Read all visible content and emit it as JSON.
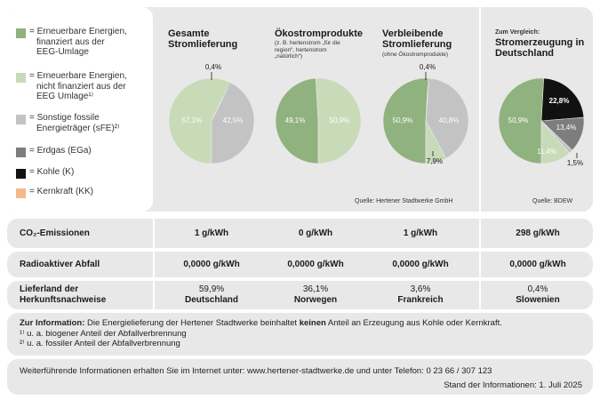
{
  "legend": [
    {
      "color": "#8fb27e",
      "text": "= Erneuerbare Energien, finanziert aus der EEG-Umlage",
      "lines": [
        "= Erneuerbare Energien,",
        "finanziert aus der",
        "EEG-Umlage"
      ]
    },
    {
      "color": "#c8dbb8",
      "text": "= Erneuerbare Energien, nicht finanziert aus der EEG Umlage 1)",
      "lines": [
        "= Erneuerbare Energien,",
        "nicht finanziert aus der",
        "EEG Umlage¹⁾"
      ]
    },
    {
      "color": "#c3c3c3",
      "text": "= Sonstige fossile Energieträger (sFE) 2)",
      "lines": [
        "= Sonstige fossile",
        "Energieträger (sFE)²⁾"
      ]
    },
    {
      "color": "#7d7d7d",
      "text": "= Erdgas (EGa)",
      "lines": [
        "= Erdgas (EGa)"
      ]
    },
    {
      "color": "#111111",
      "text": "= Kohle (K)",
      "lines": [
        "= Kohle (K)"
      ]
    },
    {
      "color": "#f4b88e",
      "text": "= Kernkraft (KK)",
      "lines": [
        "= Kernkraft (KK)"
      ]
    }
  ],
  "charts": {
    "gesamt": {
      "title_lines": [
        "Gesamte",
        "Stromlieferung"
      ]
    },
    "oeko": {
      "title_lines": [
        "Ökostromprodukte"
      ],
      "sub_lines": [
        "(z. B. hertenstrom „für die",
        "region“, hertenstrom",
        "„natürlich“)"
      ]
    },
    "verbleibend": {
      "title_lines": [
        "Verbleibende",
        "Stromlieferung"
      ],
      "sub_lines": [
        "(ohne Ökostromprodukte)"
      ]
    },
    "deutschland": {
      "pre_title": "Zum Vergleich:",
      "title_lines": [
        "Stromerzeugung in",
        "Deutschland"
      ]
    }
  },
  "chart_data": [
    {
      "type": "pie",
      "title": "Gesamte Stromlieferung",
      "slices": [
        {
          "label": "57,1%",
          "value": 57.1,
          "category": "Erneuerbare Energien, nicht finanziert aus der EEG Umlage",
          "color": "#c8dbb8"
        },
        {
          "label": "42,5%",
          "value": 42.5,
          "category": "Sonstige fossile Energieträger (sFE)",
          "color": "#c3c3c3"
        },
        {
          "label": "0,4%",
          "value": 0.4,
          "category": "Erdgas (EGa)",
          "color": "#7d7d7d"
        }
      ]
    },
    {
      "type": "pie",
      "title": "Ökostromprodukte",
      "slices": [
        {
          "label": "49,1%",
          "value": 49.1,
          "category": "Erneuerbare Energien, finanziert aus der EEG-Umlage",
          "color": "#8fb27e"
        },
        {
          "label": "50,9%",
          "value": 50.9,
          "category": "Erneuerbare Energien, nicht finanziert aus der EEG Umlage",
          "color": "#c8dbb8"
        }
      ]
    },
    {
      "type": "pie",
      "title": "Verbleibende Stromlieferung",
      "slices": [
        {
          "label": "50,9%",
          "value": 50.9,
          "category": "Erneuerbare Energien, finanziert aus der EEG-Umlage",
          "color": "#8fb27e"
        },
        {
          "label": "7,9%",
          "value": 7.9,
          "category": "Erneuerbare Energien, nicht finanziert aus der EEG Umlage",
          "color": "#c8dbb8"
        },
        {
          "label": "40,8%",
          "value": 40.8,
          "category": "Sonstige fossile Energieträger (sFE)",
          "color": "#c3c3c3"
        },
        {
          "label": "0,4%",
          "value": 0.4,
          "category": "Erdgas (EGa)",
          "color": "#7d7d7d"
        }
      ]
    },
    {
      "type": "pie",
      "title": "Stromerzeugung in Deutschland",
      "slices": [
        {
          "label": "50,9%",
          "value": 50.9,
          "category": "Erneuerbare Energien, finanziert aus der EEG-Umlage",
          "color": "#8fb27e"
        },
        {
          "label": "11,4%",
          "value": 11.4,
          "category": "Erneuerbare Energien, nicht finanziert aus der EEG Umlage",
          "color": "#c8dbb8"
        },
        {
          "label": "1,5%",
          "value": 1.5,
          "category": "Sonstige fossile Energieträger (sFE)",
          "color": "#c3c3c3"
        },
        {
          "label": "13,4%",
          "value": 13.4,
          "category": "Erdgas (EGa)",
          "color": "#7d7d7d"
        },
        {
          "label": "22,8%",
          "value": 22.8,
          "category": "Kohle (K)",
          "color": "#111111"
        }
      ]
    }
  ],
  "sources": {
    "stadtwerke": "Quelle: Hertener Stadtwerke GmbH",
    "bdew": "Quelle: BDEW"
  },
  "table": {
    "rows": [
      {
        "label_lines": [
          "CO₂-Emissionen"
        ],
        "cells": [
          [
            "1 g/kWh"
          ],
          [
            "0 g/kWh"
          ],
          [
            "1 g/kWh"
          ],
          [
            "298 g/kWh"
          ]
        ]
      },
      {
        "label_lines": [
          "Radioaktiver Abfall"
        ],
        "cells": [
          [
            "0,0000 g/kWh"
          ],
          [
            "0,0000 g/kWh"
          ],
          [
            "0,0000 g/kWh"
          ],
          [
            "0,0000 g/kWh"
          ]
        ]
      },
      {
        "label_lines": [
          "Lieferland der",
          "Herkunftsnachweise"
        ],
        "cells": [
          [
            "59,9%",
            "Deutschland"
          ],
          [
            "36,1%",
            "Norwegen"
          ],
          [
            "3,6%",
            "Frankreich"
          ],
          [
            "0,4%",
            "Slowenien"
          ]
        ]
      }
    ]
  },
  "info": {
    "lead": "Zur Information:",
    "text1": " Die Energielieferung der Hertener Stadtwerke beinhaltet ",
    "bold": "keinen",
    "text2": " Anteil an Erzeugung aus Kohle oder Kernkraft.",
    "note1": "¹⁾ u. a. biogener Anteil der Abfallverbrennung",
    "note2": "²⁾ u. a. fossiler Anteil der Abfallverbrennung"
  },
  "footer": {
    "line1": "Weiterführende Informationen erhalten Sie im Internet unter: www.hertener-stadtwerke.de und unter Telefon: 0 23 66 / 307 123",
    "line2": "Stand der Informationen: 1. Juli 2025"
  }
}
